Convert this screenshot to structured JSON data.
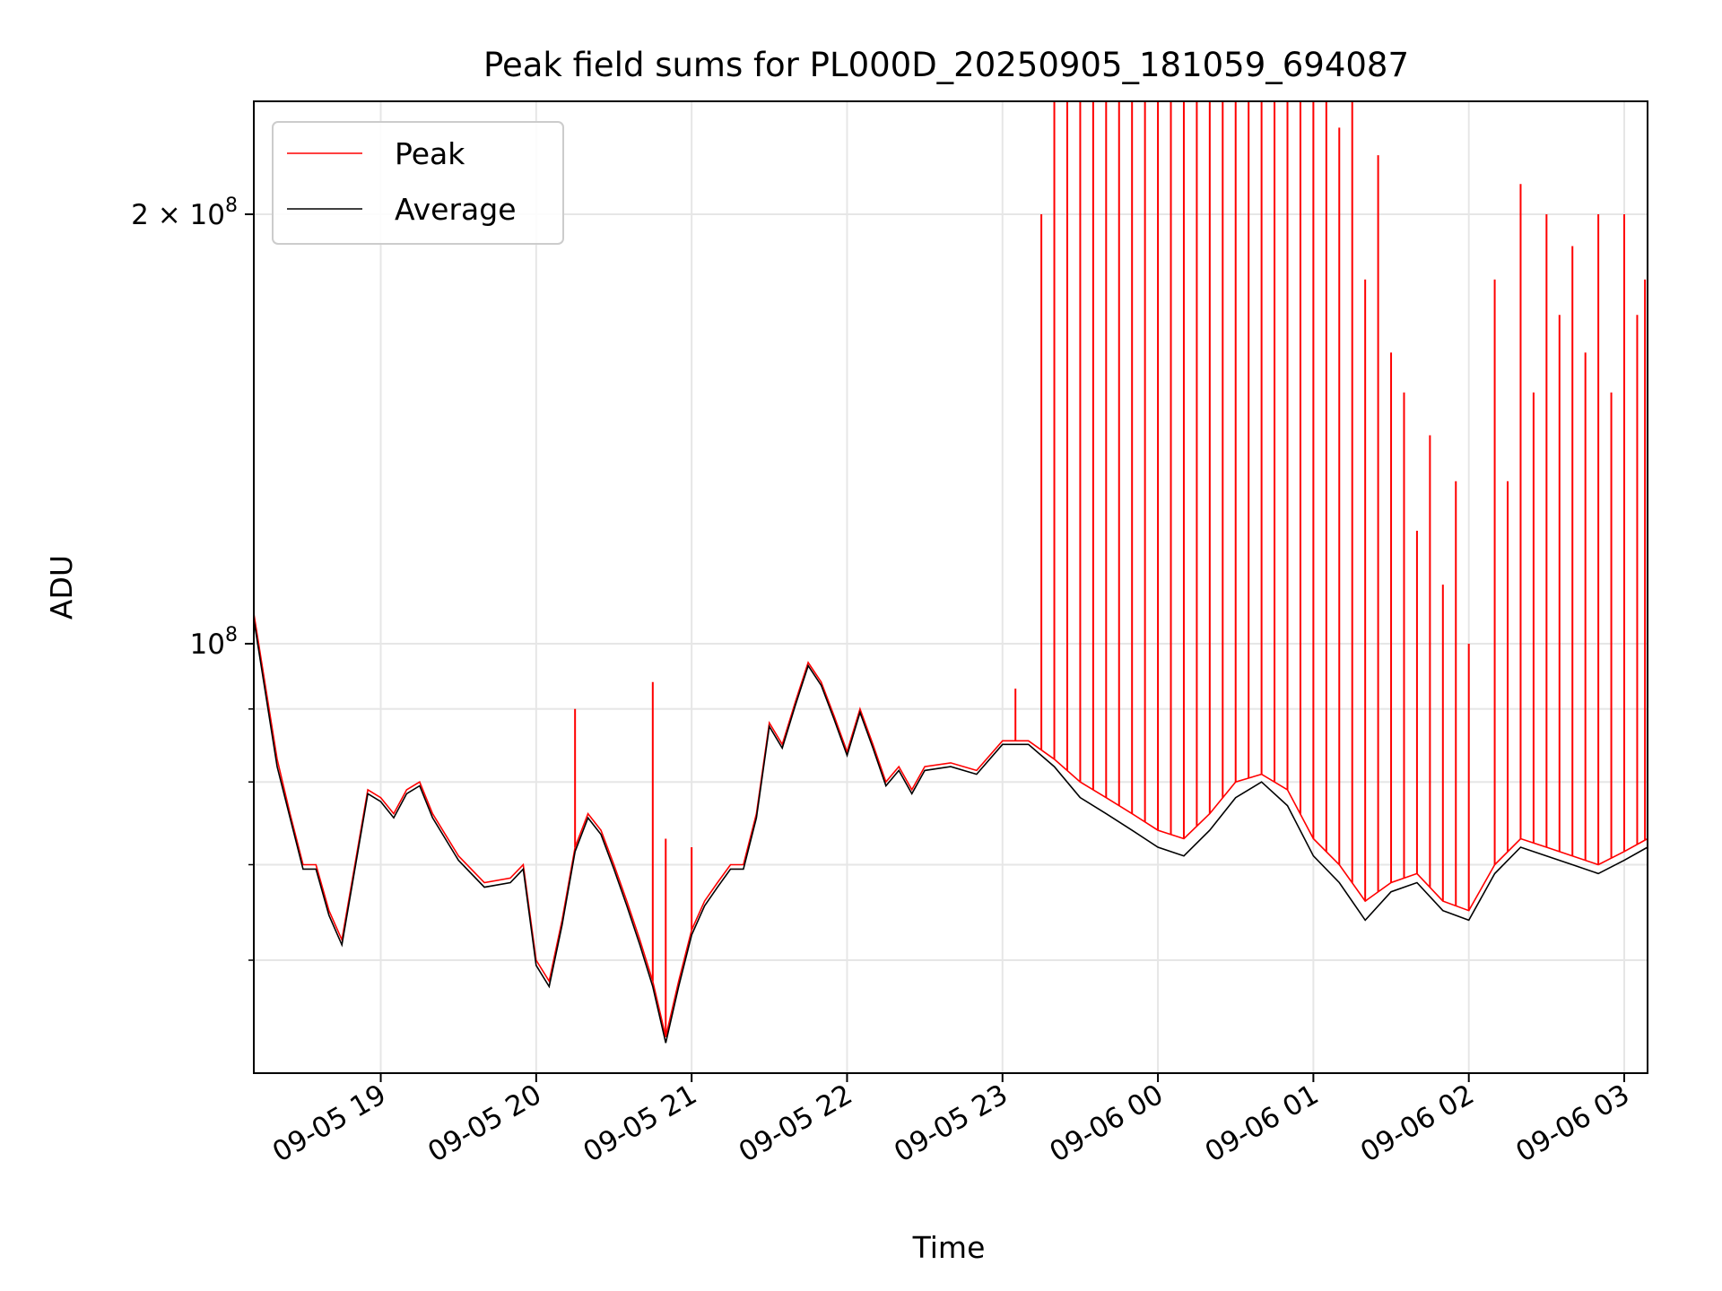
{
  "chart_data": {
    "type": "line",
    "title": "Peak field sums for PL000D_20250905_181059_694087",
    "xlabel": "Time",
    "ylabel": "ADU",
    "yscale": "log",
    "ylim": [
      50000000,
      240000000
    ],
    "xlim": [
      "2025-09-05 18:11",
      "2025-09-06 03:09"
    ],
    "x_ticks": [
      {
        "at": "2025-09-05 19:00",
        "label": "09-05 19"
      },
      {
        "at": "2025-09-05 20:00",
        "label": "09-05 20"
      },
      {
        "at": "2025-09-05 21:00",
        "label": "09-05 21"
      },
      {
        "at": "2025-09-05 22:00",
        "label": "09-05 22"
      },
      {
        "at": "2025-09-05 23:00",
        "label": "09-05 23"
      },
      {
        "at": "2025-09-06 00:00",
        "label": "09-06 00"
      },
      {
        "at": "2025-09-06 01:00",
        "label": "09-06 01"
      },
      {
        "at": "2025-09-06 02:00",
        "label": "09-06 02"
      },
      {
        "at": "2025-09-06 03:00",
        "label": "09-06 03"
      }
    ],
    "y_major_ticks": [
      {
        "value": 100000000,
        "base": "10",
        "exp": "8"
      },
      {
        "value": 200000000,
        "base": "2 × 10",
        "exp": "8"
      }
    ],
    "y_minor_ticks": [
      60000000,
      70000000,
      80000000,
      90000000
    ],
    "grid": true,
    "legend_position": "top-left",
    "series": [
      {
        "name": "Peak",
        "color": "#ff0000",
        "points": [
          [
            "2025-09-05 18:11",
            105000000
          ],
          [
            "2025-09-05 18:20",
            83000000
          ],
          [
            "2025-09-05 18:25",
            76000000
          ],
          [
            "2025-09-05 18:30",
            70000000
          ],
          [
            "2025-09-05 18:35",
            70000000
          ],
          [
            "2025-09-05 18:40",
            65000000
          ],
          [
            "2025-09-05 18:45",
            62000000
          ],
          [
            "2025-09-05 18:50",
            70000000
          ],
          [
            "2025-09-05 18:55",
            79000000
          ],
          [
            "2025-09-05 19:00",
            78000000
          ],
          [
            "2025-09-05 19:05",
            76000000
          ],
          [
            "2025-09-05 19:10",
            79000000
          ],
          [
            "2025-09-05 19:15",
            80000000
          ],
          [
            "2025-09-05 19:20",
            76000000
          ],
          [
            "2025-09-05 19:30",
            71000000
          ],
          [
            "2025-09-05 19:40",
            68000000
          ],
          [
            "2025-09-05 19:50",
            68500000
          ],
          [
            "2025-09-05 19:55",
            70000000
          ],
          [
            "2025-09-05 20:00",
            60000000
          ],
          [
            "2025-09-05 20:05",
            58000000
          ],
          [
            "2025-09-05 20:10",
            64000000
          ],
          [
            "2025-09-05 20:15",
            72000000
          ],
          [
            "2025-09-05 20:20",
            76000000
          ],
          [
            "2025-09-05 20:25",
            74000000
          ],
          [
            "2025-09-05 20:30",
            70000000
          ],
          [
            "2025-09-05 20:35",
            66000000
          ],
          [
            "2025-09-05 20:40",
            62000000
          ],
          [
            "2025-09-05 20:45",
            58000000
          ],
          [
            "2025-09-05 20:50",
            53000000
          ],
          [
            "2025-09-05 20:55",
            58000000
          ],
          [
            "2025-09-05 21:00",
            63000000
          ],
          [
            "2025-09-05 21:05",
            66000000
          ],
          [
            "2025-09-05 21:10",
            68000000
          ],
          [
            "2025-09-05 21:15",
            70000000
          ],
          [
            "2025-09-05 21:20",
            70000000
          ],
          [
            "2025-09-05 21:25",
            76000000
          ],
          [
            "2025-09-05 21:30",
            88000000
          ],
          [
            "2025-09-05 21:35",
            85000000
          ],
          [
            "2025-09-05 21:40",
            91000000
          ],
          [
            "2025-09-05 21:45",
            97000000
          ],
          [
            "2025-09-05 21:50",
            94000000
          ],
          [
            "2025-09-05 21:55",
            89000000
          ],
          [
            "2025-09-05 22:00",
            84000000
          ],
          [
            "2025-09-05 22:05",
            90000000
          ],
          [
            "2025-09-05 22:10",
            85000000
          ],
          [
            "2025-09-05 22:15",
            80000000
          ],
          [
            "2025-09-05 22:20",
            82000000
          ],
          [
            "2025-09-05 22:25",
            79000000
          ],
          [
            "2025-09-05 22:30",
            82000000
          ],
          [
            "2025-09-05 22:40",
            82500000
          ],
          [
            "2025-09-05 22:50",
            81500000
          ],
          [
            "2025-09-05 23:00",
            85500000
          ],
          [
            "2025-09-05 23:10",
            85500000
          ],
          [
            "2025-09-05 23:20",
            83000000
          ],
          [
            "2025-09-05 23:30",
            80000000
          ],
          [
            "2025-09-05 23:40",
            78000000
          ],
          [
            "2025-09-05 23:50",
            76000000
          ],
          [
            "2025-09-06 00:00",
            74000000
          ],
          [
            "2025-09-06 00:10",
            73000000
          ],
          [
            "2025-09-06 00:20",
            76000000
          ],
          [
            "2025-09-06 00:30",
            80000000
          ],
          [
            "2025-09-06 00:40",
            81000000
          ],
          [
            "2025-09-06 00:50",
            79000000
          ],
          [
            "2025-09-06 01:00",
            73000000
          ],
          [
            "2025-09-06 01:10",
            70000000
          ],
          [
            "2025-09-06 01:20",
            66000000
          ],
          [
            "2025-09-06 01:30",
            68000000
          ],
          [
            "2025-09-06 01:40",
            69000000
          ],
          [
            "2025-09-06 01:50",
            66000000
          ],
          [
            "2025-09-06 02:00",
            65000000
          ],
          [
            "2025-09-06 02:10",
            70000000
          ],
          [
            "2025-09-06 02:20",
            73000000
          ],
          [
            "2025-09-06 02:30",
            72000000
          ],
          [
            "2025-09-06 02:40",
            71000000
          ],
          [
            "2025-09-06 02:50",
            70000000
          ],
          [
            "2025-09-06 03:00",
            71500000
          ],
          [
            "2025-09-06 03:09",
            73000000
          ]
        ],
        "spikes": [
          [
            "2025-09-05 20:15",
            90000000
          ],
          [
            "2025-09-05 20:45",
            94000000
          ],
          [
            "2025-09-05 20:50",
            73000000
          ],
          [
            "2025-09-05 21:00",
            72000000
          ],
          [
            "2025-09-05 23:05",
            93000000
          ],
          [
            "2025-09-05 23:15",
            200000000
          ],
          [
            "2025-09-05 23:20",
            240000000
          ],
          [
            "2025-09-05 23:25",
            240000000
          ],
          [
            "2025-09-05 23:30",
            240000000
          ],
          [
            "2025-09-05 23:35",
            240000000
          ],
          [
            "2025-09-05 23:40",
            240000000
          ],
          [
            "2025-09-05 23:45",
            240000000
          ],
          [
            "2025-09-05 23:50",
            240000000
          ],
          [
            "2025-09-05 23:55",
            240000000
          ],
          [
            "2025-09-06 00:00",
            240000000
          ],
          [
            "2025-09-06 00:05",
            240000000
          ],
          [
            "2025-09-06 00:10",
            240000000
          ],
          [
            "2025-09-06 00:15",
            240000000
          ],
          [
            "2025-09-06 00:20",
            240000000
          ],
          [
            "2025-09-06 00:25",
            240000000
          ],
          [
            "2025-09-06 00:30",
            240000000
          ],
          [
            "2025-09-06 00:35",
            240000000
          ],
          [
            "2025-09-06 00:40",
            240000000
          ],
          [
            "2025-09-06 00:45",
            240000000
          ],
          [
            "2025-09-06 00:50",
            240000000
          ],
          [
            "2025-09-06 00:55",
            240000000
          ],
          [
            "2025-09-06 01:00",
            240000000
          ],
          [
            "2025-09-06 01:05",
            240000000
          ],
          [
            "2025-09-06 01:10",
            230000000
          ],
          [
            "2025-09-06 01:15",
            240000000
          ],
          [
            "2025-09-06 01:20",
            180000000
          ],
          [
            "2025-09-06 01:25",
            220000000
          ],
          [
            "2025-09-06 01:30",
            160000000
          ],
          [
            "2025-09-06 01:35",
            150000000
          ],
          [
            "2025-09-06 01:40",
            120000000
          ],
          [
            "2025-09-06 01:45",
            140000000
          ],
          [
            "2025-09-06 01:50",
            110000000
          ],
          [
            "2025-09-06 01:55",
            130000000
          ],
          [
            "2025-09-06 02:00",
            100000000
          ],
          [
            "2025-09-06 02:10",
            180000000
          ],
          [
            "2025-09-06 02:15",
            130000000
          ],
          [
            "2025-09-06 02:20",
            210000000
          ],
          [
            "2025-09-06 02:25",
            150000000
          ],
          [
            "2025-09-06 02:30",
            200000000
          ],
          [
            "2025-09-06 02:35",
            170000000
          ],
          [
            "2025-09-06 02:40",
            190000000
          ],
          [
            "2025-09-06 02:45",
            160000000
          ],
          [
            "2025-09-06 02:50",
            200000000
          ],
          [
            "2025-09-06 02:55",
            150000000
          ],
          [
            "2025-09-06 03:00",
            200000000
          ],
          [
            "2025-09-06 03:05",
            170000000
          ],
          [
            "2025-09-06 03:08",
            180000000
          ]
        ]
      },
      {
        "name": "Average",
        "color": "#000000",
        "points": [
          [
            "2025-09-05 18:11",
            104000000
          ],
          [
            "2025-09-05 18:20",
            82000000
          ],
          [
            "2025-09-05 18:25",
            75500000
          ],
          [
            "2025-09-05 18:30",
            69500000
          ],
          [
            "2025-09-05 18:35",
            69500000
          ],
          [
            "2025-09-05 18:40",
            64500000
          ],
          [
            "2025-09-05 18:45",
            61500000
          ],
          [
            "2025-09-05 18:50",
            69500000
          ],
          [
            "2025-09-05 18:55",
            78500000
          ],
          [
            "2025-09-05 19:00",
            77500000
          ],
          [
            "2025-09-05 19:05",
            75500000
          ],
          [
            "2025-09-05 19:10",
            78500000
          ],
          [
            "2025-09-05 19:15",
            79500000
          ],
          [
            "2025-09-05 19:20",
            75500000
          ],
          [
            "2025-09-05 19:30",
            70500000
          ],
          [
            "2025-09-05 19:40",
            67500000
          ],
          [
            "2025-09-05 19:50",
            68000000
          ],
          [
            "2025-09-05 19:55",
            69500000
          ],
          [
            "2025-09-05 20:00",
            59500000
          ],
          [
            "2025-09-05 20:05",
            57500000
          ],
          [
            "2025-09-05 20:10",
            63500000
          ],
          [
            "2025-09-05 20:15",
            71500000
          ],
          [
            "2025-09-05 20:20",
            75500000
          ],
          [
            "2025-09-05 20:25",
            73500000
          ],
          [
            "2025-09-05 20:30",
            69500000
          ],
          [
            "2025-09-05 20:35",
            65500000
          ],
          [
            "2025-09-05 20:40",
            61500000
          ],
          [
            "2025-09-05 20:45",
            57500000
          ],
          [
            "2025-09-05 20:50",
            52500000
          ],
          [
            "2025-09-05 20:55",
            57500000
          ],
          [
            "2025-09-05 21:00",
            62500000
          ],
          [
            "2025-09-05 21:05",
            65500000
          ],
          [
            "2025-09-05 21:10",
            67500000
          ],
          [
            "2025-09-05 21:15",
            69500000
          ],
          [
            "2025-09-05 21:20",
            69500000
          ],
          [
            "2025-09-05 21:25",
            75500000
          ],
          [
            "2025-09-05 21:30",
            87500000
          ],
          [
            "2025-09-05 21:35",
            84500000
          ],
          [
            "2025-09-05 21:40",
            90500000
          ],
          [
            "2025-09-05 21:45",
            96500000
          ],
          [
            "2025-09-05 21:50",
            93500000
          ],
          [
            "2025-09-05 21:55",
            88500000
          ],
          [
            "2025-09-05 22:00",
            83500000
          ],
          [
            "2025-09-05 22:05",
            89500000
          ],
          [
            "2025-09-05 22:10",
            84500000
          ],
          [
            "2025-09-05 22:15",
            79500000
          ],
          [
            "2025-09-05 22:20",
            81500000
          ],
          [
            "2025-09-05 22:25",
            78500000
          ],
          [
            "2025-09-05 22:30",
            81500000
          ],
          [
            "2025-09-05 22:40",
            82000000
          ],
          [
            "2025-09-05 22:50",
            81000000
          ],
          [
            "2025-09-05 23:00",
            85000000
          ],
          [
            "2025-09-05 23:10",
            85000000
          ],
          [
            "2025-09-05 23:20",
            82000000
          ],
          [
            "2025-09-05 23:30",
            78000000
          ],
          [
            "2025-09-05 23:40",
            76000000
          ],
          [
            "2025-09-05 23:50",
            74000000
          ],
          [
            "2025-09-06 00:00",
            72000000
          ],
          [
            "2025-09-06 00:10",
            71000000
          ],
          [
            "2025-09-06 00:20",
            74000000
          ],
          [
            "2025-09-06 00:30",
            78000000
          ],
          [
            "2025-09-06 00:40",
            80000000
          ],
          [
            "2025-09-06 00:50",
            77000000
          ],
          [
            "2025-09-06 01:00",
            71000000
          ],
          [
            "2025-09-06 01:10",
            68000000
          ],
          [
            "2025-09-06 01:20",
            64000000
          ],
          [
            "2025-09-06 01:30",
            67000000
          ],
          [
            "2025-09-06 01:40",
            68000000
          ],
          [
            "2025-09-06 01:50",
            65000000
          ],
          [
            "2025-09-06 02:00",
            64000000
          ],
          [
            "2025-09-06 02:10",
            69000000
          ],
          [
            "2025-09-06 02:20",
            72000000
          ],
          [
            "2025-09-06 02:30",
            71000000
          ],
          [
            "2025-09-06 02:40",
            70000000
          ],
          [
            "2025-09-06 02:50",
            69000000
          ],
          [
            "2025-09-06 03:00",
            70500000
          ],
          [
            "2025-09-06 03:09",
            72000000
          ]
        ]
      }
    ]
  }
}
